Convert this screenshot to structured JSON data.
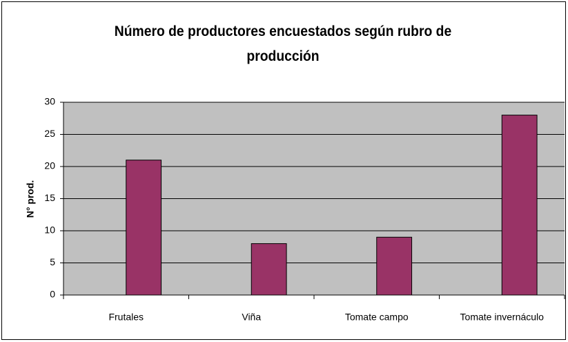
{
  "chart_data": {
    "type": "bar",
    "title": "Número de productores encuestados según rubro de producción",
    "y_label": "N° prod.",
    "categories": [
      "Frutales",
      "Viña",
      "Tomate campo",
      "Tomate invernáculo"
    ],
    "values": [
      21,
      8,
      9,
      28
    ],
    "color": "#993366",
    "ylim": [
      0,
      30
    ],
    "yticks": [
      0,
      5,
      10,
      15,
      20,
      25,
      30
    ],
    "grid": true
  }
}
